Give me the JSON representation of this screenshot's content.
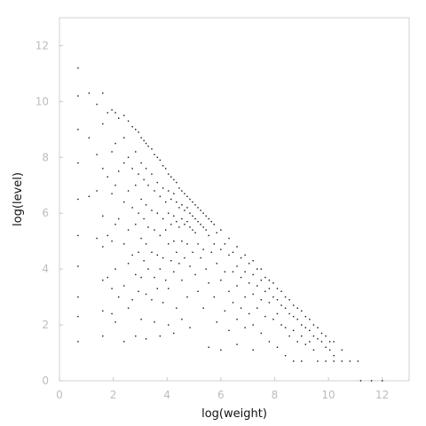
{
  "chart_data": {
    "type": "scatter",
    "title": "",
    "xlabel": "log(weight)",
    "ylabel": "log(level)",
    "xlim": [
      0,
      13
    ],
    "ylim": [
      0,
      13
    ],
    "xticks": [
      "0",
      "2",
      "4",
      "6",
      "8",
      "10",
      "12"
    ],
    "yticks": [
      "0",
      "2",
      "4",
      "6",
      "8",
      "10",
      "12"
    ],
    "grid": false,
    "series": [
      {
        "points": [
          [
            0.69,
            11.2
          ],
          [
            0.69,
            10.2
          ],
          [
            0.69,
            9.0
          ],
          [
            0.69,
            7.8
          ],
          [
            0.69,
            6.5
          ],
          [
            0.69,
            5.2
          ],
          [
            0.69,
            4.1
          ],
          [
            0.69,
            3.0
          ],
          [
            0.69,
            2.3
          ],
          [
            0.69,
            1.4
          ],
          [
            1.1,
            10.3
          ],
          [
            1.1,
            8.7
          ],
          [
            1.1,
            6.6
          ],
          [
            1.39,
            9.9
          ],
          [
            1.39,
            8.1
          ],
          [
            1.39,
            6.8
          ],
          [
            1.39,
            5.1
          ],
          [
            1.61,
            10.3
          ],
          [
            1.61,
            9.2
          ],
          [
            1.61,
            7.6
          ],
          [
            1.61,
            5.9
          ],
          [
            1.61,
            4.8
          ],
          [
            1.61,
            3.6
          ],
          [
            1.61,
            2.5
          ],
          [
            1.61,
            1.6
          ],
          [
            1.79,
            9.6
          ],
          [
            1.79,
            7.3
          ],
          [
            1.79,
            5.2
          ],
          [
            1.79,
            3.7
          ],
          [
            1.95,
            9.7
          ],
          [
            1.95,
            8.2
          ],
          [
            1.95,
            6.7
          ],
          [
            1.95,
            5.0
          ],
          [
            1.95,
            3.3
          ],
          [
            1.95,
            2.4
          ],
          [
            2.08,
            9.6
          ],
          [
            2.08,
            8.5
          ],
          [
            2.08,
            7.0
          ],
          [
            2.08,
            5.6
          ],
          [
            2.08,
            4.0
          ],
          [
            2.08,
            2.1
          ],
          [
            2.2,
            9.4
          ],
          [
            2.2,
            7.5
          ],
          [
            2.2,
            5.8
          ],
          [
            2.2,
            3.0
          ],
          [
            2.4,
            9.5
          ],
          [
            2.4,
            8.7
          ],
          [
            2.4,
            7.8
          ],
          [
            2.4,
            6.4
          ],
          [
            2.4,
            4.9
          ],
          [
            2.4,
            3.4
          ],
          [
            2.4,
            1.4
          ],
          [
            2.56,
            9.3
          ],
          [
            2.56,
            8.0
          ],
          [
            2.56,
            6.8
          ],
          [
            2.56,
            5.4
          ],
          [
            2.56,
            4.2
          ],
          [
            2.56,
            2.6
          ],
          [
            2.71,
            9.1
          ],
          [
            2.71,
            7.6
          ],
          [
            2.71,
            6.2
          ],
          [
            2.71,
            4.5
          ],
          [
            2.71,
            2.9
          ],
          [
            2.83,
            9.0
          ],
          [
            2.83,
            8.2
          ],
          [
            2.83,
            7.0
          ],
          [
            2.83,
            5.6
          ],
          [
            2.83,
            3.8
          ],
          [
            2.83,
            1.6
          ],
          [
            2.94,
            8.9
          ],
          [
            2.94,
            7.4
          ],
          [
            2.94,
            6.0
          ],
          [
            2.94,
            4.6
          ],
          [
            2.94,
            3.2
          ],
          [
            3.04,
            8.7
          ],
          [
            3.04,
            7.8
          ],
          [
            3.04,
            6.5
          ],
          [
            3.04,
            5.1
          ],
          [
            3.04,
            3.7
          ],
          [
            3.04,
            2.2
          ],
          [
            3.14,
            8.6
          ],
          [
            3.14,
            7.2
          ],
          [
            3.14,
            5.8
          ],
          [
            3.14,
            4.3
          ],
          [
            3.22,
            8.5
          ],
          [
            3.22,
            7.6
          ],
          [
            3.22,
            6.3
          ],
          [
            3.22,
            4.9
          ],
          [
            3.22,
            3.1
          ],
          [
            3.22,
            1.5
          ],
          [
            3.3,
            8.4
          ],
          [
            3.3,
            7.0
          ],
          [
            3.3,
            5.5
          ],
          [
            3.3,
            4.0
          ],
          [
            3.43,
            8.3
          ],
          [
            3.43,
            7.4
          ],
          [
            3.43,
            6.1
          ],
          [
            3.43,
            4.6
          ],
          [
            3.43,
            2.9
          ],
          [
            3.53,
            8.1
          ],
          [
            3.53,
            6.8
          ],
          [
            3.53,
            5.4
          ],
          [
            3.53,
            3.7
          ],
          [
            3.53,
            2.1
          ],
          [
            3.64,
            8.0
          ],
          [
            3.64,
            7.1
          ],
          [
            3.64,
            6.0
          ],
          [
            3.64,
            4.5
          ],
          [
            3.64,
            3.3
          ],
          [
            3.74,
            7.9
          ],
          [
            3.74,
            6.6
          ],
          [
            3.74,
            5.2
          ],
          [
            3.74,
            4.0
          ],
          [
            3.74,
            1.6
          ],
          [
            3.85,
            7.7
          ],
          [
            3.85,
            6.9
          ],
          [
            3.85,
            5.8
          ],
          [
            3.85,
            4.4
          ],
          [
            3.85,
            2.8
          ],
          [
            3.95,
            7.6
          ],
          [
            3.95,
            6.4
          ],
          [
            3.95,
            5.4
          ],
          [
            3.95,
            3.6
          ],
          [
            4.05,
            7.4
          ],
          [
            4.05,
            6.8
          ],
          [
            4.05,
            6.0
          ],
          [
            4.05,
            4.9
          ],
          [
            4.05,
            3.3
          ],
          [
            4.05,
            2.0
          ],
          [
            4.15,
            7.3
          ],
          [
            4.15,
            6.5
          ],
          [
            4.15,
            5.6
          ],
          [
            4.15,
            4.3
          ],
          [
            4.25,
            7.2
          ],
          [
            4.25,
            6.7
          ],
          [
            4.25,
            5.9
          ],
          [
            4.25,
            5.0
          ],
          [
            4.25,
            3.9
          ],
          [
            4.25,
            1.7
          ],
          [
            4.35,
            7.1
          ],
          [
            4.35,
            6.4
          ],
          [
            4.35,
            5.7
          ],
          [
            4.35,
            4.6
          ],
          [
            4.35,
            2.6
          ],
          [
            4.45,
            6.9
          ],
          [
            4.45,
            6.2
          ],
          [
            4.45,
            5.5
          ],
          [
            4.45,
            4.2
          ],
          [
            4.55,
            6.8
          ],
          [
            4.55,
            6.3
          ],
          [
            4.55,
            5.8
          ],
          [
            4.55,
            5.0
          ],
          [
            4.55,
            3.6
          ],
          [
            4.55,
            2.2
          ],
          [
            4.65,
            6.7
          ],
          [
            4.65,
            6.1
          ],
          [
            4.65,
            5.6
          ],
          [
            4.65,
            4.4
          ],
          [
            4.75,
            6.6
          ],
          [
            4.75,
            6.2
          ],
          [
            4.75,
            5.7
          ],
          [
            4.75,
            4.9
          ],
          [
            4.75,
            3.0
          ],
          [
            4.85,
            6.5
          ],
          [
            4.85,
            6.0
          ],
          [
            4.85,
            5.5
          ],
          [
            4.85,
            4.1
          ],
          [
            4.85,
            1.9
          ],
          [
            4.95,
            6.4
          ],
          [
            4.95,
            5.9
          ],
          [
            4.95,
            5.4
          ],
          [
            4.95,
            4.6
          ],
          [
            5.05,
            6.3
          ],
          [
            5.05,
            5.8
          ],
          [
            5.05,
            5.3
          ],
          [
            5.05,
            3.8
          ],
          [
            5.15,
            6.2
          ],
          [
            5.15,
            5.7
          ],
          [
            5.15,
            4.9
          ],
          [
            5.15,
            3.2
          ],
          [
            5.25,
            6.1
          ],
          [
            5.25,
            5.6
          ],
          [
            5.25,
            4.4
          ],
          [
            5.35,
            6.0
          ],
          [
            5.35,
            5.5
          ],
          [
            5.35,
            4.7
          ],
          [
            5.35,
            2.6
          ],
          [
            5.45,
            5.9
          ],
          [
            5.45,
            5.4
          ],
          [
            5.45,
            4.0
          ],
          [
            5.55,
            5.8
          ],
          [
            5.55,
            5.2
          ],
          [
            5.55,
            3.5
          ],
          [
            5.55,
            1.2
          ],
          [
            5.65,
            5.7
          ],
          [
            5.65,
            4.6
          ],
          [
            5.75,
            5.6
          ],
          [
            5.75,
            4.9
          ],
          [
            5.75,
            3.0
          ],
          [
            5.85,
            5.3
          ],
          [
            5.85,
            4.2
          ],
          [
            5.85,
            2.1
          ],
          [
            6.0,
            5.4
          ],
          [
            6.0,
            4.7
          ],
          [
            6.0,
            3.6
          ],
          [
            6.0,
            1.1
          ],
          [
            6.15,
            4.9
          ],
          [
            6.15,
            3.9
          ],
          [
            6.15,
            2.5
          ],
          [
            6.3,
            5.1
          ],
          [
            6.3,
            4.5
          ],
          [
            6.3,
            3.2
          ],
          [
            6.3,
            1.8
          ],
          [
            6.45,
            4.6
          ],
          [
            6.45,
            3.9
          ],
          [
            6.45,
            2.8
          ],
          [
            6.6,
            4.8
          ],
          [
            6.6,
            4.1
          ],
          [
            6.6,
            3.4
          ],
          [
            6.6,
            2.2
          ],
          [
            6.6,
            1.3
          ],
          [
            6.75,
            4.4
          ],
          [
            6.75,
            3.7
          ],
          [
            6.75,
            2.6
          ],
          [
            6.9,
            4.5
          ],
          [
            6.9,
            3.9
          ],
          [
            6.9,
            3.0
          ],
          [
            6.9,
            1.9
          ],
          [
            7.05,
            4.2
          ],
          [
            7.05,
            3.5
          ],
          [
            7.05,
            2.4
          ],
          [
            7.2,
            4.3
          ],
          [
            7.2,
            3.8
          ],
          [
            7.2,
            3.1
          ],
          [
            7.2,
            2.0
          ],
          [
            7.2,
            1.1
          ],
          [
            7.35,
            4.0
          ],
          [
            7.35,
            3.4
          ],
          [
            7.35,
            2.6
          ],
          [
            7.5,
            4.0
          ],
          [
            7.5,
            3.6
          ],
          [
            7.5,
            2.9
          ],
          [
            7.5,
            1.7
          ],
          [
            7.65,
            3.7
          ],
          [
            7.65,
            3.2
          ],
          [
            7.65,
            2.3
          ],
          [
            7.8,
            3.6
          ],
          [
            7.8,
            3.3
          ],
          [
            7.8,
            2.8
          ],
          [
            7.8,
            1.4
          ],
          [
            7.95,
            3.5
          ],
          [
            7.95,
            3.0
          ],
          [
            7.95,
            2.2
          ],
          [
            8.1,
            3.3
          ],
          [
            8.1,
            2.9
          ],
          [
            8.1,
            2.4
          ],
          [
            8.1,
            1.2
          ],
          [
            8.25,
            3.2
          ],
          [
            8.25,
            2.7
          ],
          [
            8.25,
            2.0
          ],
          [
            8.4,
            3.0
          ],
          [
            8.4,
            2.6
          ],
          [
            8.4,
            1.9
          ],
          [
            8.4,
            0.9
          ],
          [
            8.55,
            2.9
          ],
          [
            8.55,
            2.4
          ],
          [
            8.55,
            1.6
          ],
          [
            8.7,
            2.7
          ],
          [
            8.7,
            2.3
          ],
          [
            8.7,
            1.8
          ],
          [
            8.7,
            0.7
          ],
          [
            8.85,
            2.6
          ],
          [
            8.85,
            2.2
          ],
          [
            8.85,
            1.4
          ],
          [
            9.0,
            2.5
          ],
          [
            9.0,
            2.0
          ],
          [
            9.0,
            1.6
          ],
          [
            9.0,
            0.7
          ],
          [
            9.15,
            2.3
          ],
          [
            9.15,
            1.9
          ],
          [
            9.15,
            1.3
          ],
          [
            9.3,
            2.2
          ],
          [
            9.3,
            1.8
          ],
          [
            9.3,
            1.4
          ],
          [
            9.45,
            2.0
          ],
          [
            9.45,
            1.6
          ],
          [
            9.45,
            1.1
          ],
          [
            9.6,
            1.9
          ],
          [
            9.6,
            1.5
          ],
          [
            9.6,
            0.7
          ],
          [
            9.75,
            1.7
          ],
          [
            9.75,
            1.4
          ],
          [
            9.9,
            1.6
          ],
          [
            9.9,
            1.2
          ],
          [
            9.9,
            0.7
          ],
          [
            10.05,
            1.4
          ],
          [
            10.05,
            1.1
          ],
          [
            10.2,
            1.4
          ],
          [
            10.2,
            0.9
          ],
          [
            10.2,
            0.7
          ],
          [
            10.5,
            1.1
          ],
          [
            10.5,
            0.7
          ],
          [
            10.8,
            0.7
          ],
          [
            11.1,
            0.7
          ],
          [
            11.2,
            0.0
          ],
          [
            11.6,
            0.0
          ],
          [
            12.0,
            0.0
          ]
        ]
      }
    ]
  }
}
